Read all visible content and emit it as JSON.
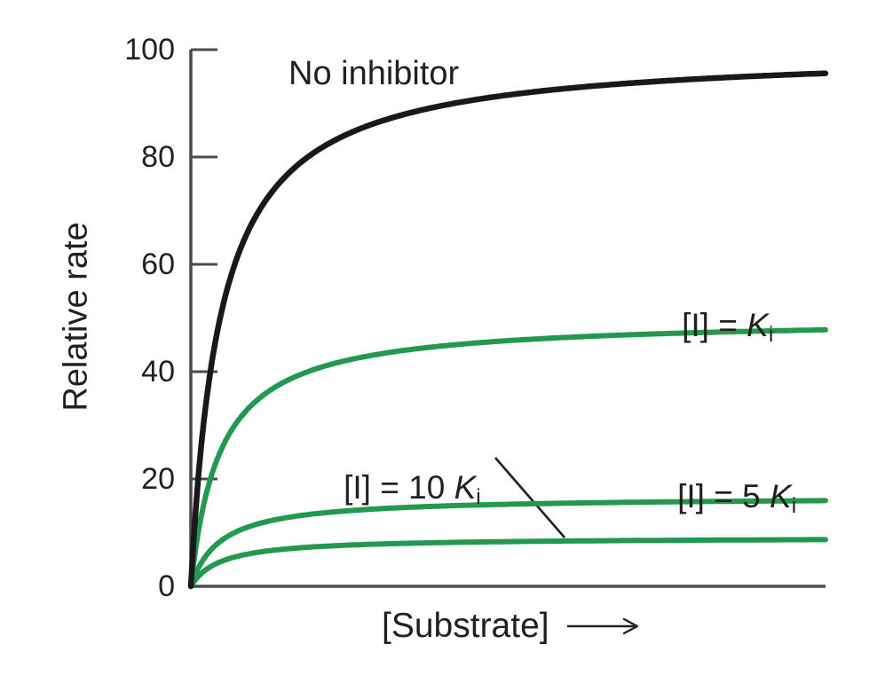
{
  "figure": {
    "background": "#ffffff"
  },
  "colors": {
    "curve_black": "#1b181a",
    "curve_green": "#22994f",
    "axis": "#4b4b4d",
    "text": "#231f20",
    "leader_line": "#231f20"
  },
  "chart_data": {
    "type": "line",
    "title": "",
    "model": "michaelis_menten (v = Vmax * S / (Km + S)), noncompetitive inhibition",
    "grid": false,
    "legend": "none (curves labeled inline)",
    "x_axis": {
      "title": "[Substrate]",
      "arrow": "⟶",
      "tick_labels": [],
      "range_km_units": [
        0,
        21.7
      ]
    },
    "y_axis": {
      "title": "Relative rate",
      "range": [
        0,
        100
      ],
      "ticks": [
        0,
        20,
        40,
        60,
        80,
        100
      ]
    },
    "series": [
      {
        "name": "No inhibitor",
        "vmax": 100,
        "km": 1,
        "color": "#1b181a",
        "plateau_reading": 95,
        "points_km_vs_rate": [
          [
            1,
            50
          ],
          [
            2,
            67
          ],
          [
            5,
            83
          ],
          [
            10,
            91
          ],
          [
            20,
            95
          ]
        ]
      },
      {
        "name": "[I] = Ki",
        "vmax": 50,
        "km": 1,
        "color": "#22994f",
        "plateau_reading": 48,
        "points_km_vs_rate": [
          [
            1,
            25
          ],
          [
            2,
            33
          ],
          [
            5,
            42
          ],
          [
            10,
            45.5
          ],
          [
            20,
            47.6
          ]
        ]
      },
      {
        "name": "[I] = 5 Ki",
        "vmax": 16.7,
        "km": 1,
        "color": "#22994f",
        "plateau_reading": 16,
        "points_km_vs_rate": [
          [
            1,
            8.3
          ],
          [
            2,
            11.1
          ],
          [
            5,
            13.9
          ],
          [
            10,
            15.2
          ],
          [
            20,
            15.9
          ]
        ]
      },
      {
        "name": "[I] = 10 Ki",
        "vmax": 9.1,
        "km": 1,
        "color": "#22994f",
        "plateau_reading": 9,
        "points_km_vs_rate": [
          [
            1,
            4.5
          ],
          [
            2,
            6.1
          ],
          [
            5,
            7.6
          ],
          [
            10,
            8.3
          ],
          [
            20,
            8.7
          ]
        ]
      }
    ]
  },
  "annotations": {
    "no_inhibitor": {
      "text": "No inhibitor"
    },
    "ki": {
      "prefix": "[I] = ",
      "mult": "",
      "symbol": "K",
      "sub": "i"
    },
    "ki5": {
      "prefix": "[I] = ",
      "mult": "5 ",
      "symbol": "K",
      "sub": "i"
    },
    "ki10": {
      "prefix": "[I] = ",
      "mult": "10 ",
      "symbol": "K",
      "sub": "i"
    }
  }
}
